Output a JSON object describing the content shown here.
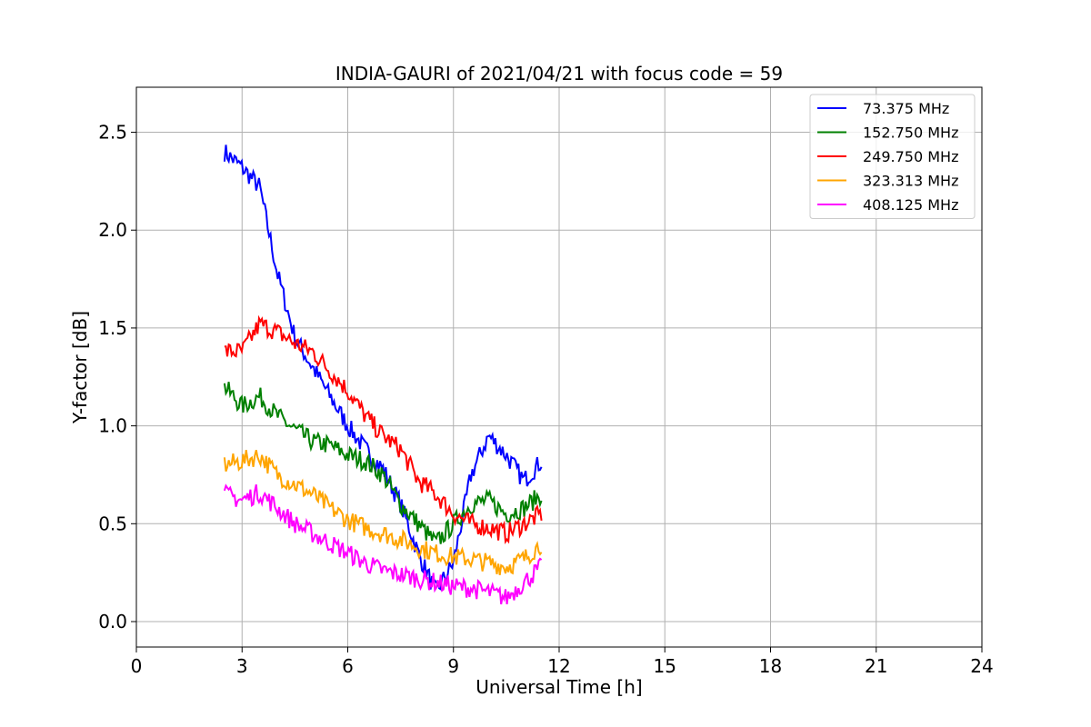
{
  "chart_data": {
    "type": "line",
    "title": "INDIA-GAURI of 2021/04/21 with focus code = 59",
    "xlabel": "Universal Time [h]",
    "ylabel": "Y-factor [dB]",
    "xlim": [
      0,
      24
    ],
    "ylim": [
      -0.13,
      2.73
    ],
    "xticks": [
      0,
      3,
      6,
      9,
      12,
      15,
      18,
      21,
      24
    ],
    "xtick_labels": [
      "0",
      "3",
      "6",
      "9",
      "12",
      "15",
      "18",
      "21",
      "24"
    ],
    "yticks": [
      0.0,
      0.5,
      1.0,
      1.5,
      2.0,
      2.5
    ],
    "ytick_labels": [
      "0.0",
      "0.5",
      "1.0",
      "1.5",
      "2.0",
      "2.5"
    ],
    "grid": true,
    "legend_position": "top-right",
    "x": [
      2.5,
      3.0,
      3.5,
      4.0,
      4.5,
      5.0,
      5.5,
      6.0,
      6.5,
      7.0,
      7.5,
      8.0,
      8.5,
      9.0,
      9.5,
      10.0,
      10.5,
      11.0,
      11.5
    ],
    "series": [
      {
        "name": " 73.375 MHz",
        "color": "#0000ff",
        "values": [
          2.4,
          2.32,
          2.22,
          1.78,
          1.45,
          1.3,
          1.15,
          1.0,
          0.88,
          0.78,
          0.6,
          0.35,
          0.15,
          0.3,
          0.75,
          0.95,
          0.85,
          0.72,
          0.82
        ]
      },
      {
        "name": "152.750 MHz",
        "color": "#008000",
        "values": [
          1.2,
          1.1,
          1.15,
          1.05,
          0.98,
          0.92,
          0.9,
          0.85,
          0.82,
          0.75,
          0.6,
          0.5,
          0.4,
          0.5,
          0.6,
          0.62,
          0.55,
          0.58,
          0.65
        ]
      },
      {
        "name": "249.750 MHz",
        "color": "#ff0000",
        "values": [
          1.38,
          1.38,
          1.52,
          1.48,
          1.42,
          1.38,
          1.28,
          1.18,
          1.05,
          0.95,
          0.88,
          0.72,
          0.65,
          0.55,
          0.5,
          0.48,
          0.45,
          0.5,
          0.55
        ]
      },
      {
        "name": "323.313 MHz",
        "color": "#ffa500",
        "values": [
          0.8,
          0.82,
          0.85,
          0.75,
          0.7,
          0.65,
          0.58,
          0.52,
          0.48,
          0.45,
          0.42,
          0.38,
          0.35,
          0.33,
          0.32,
          0.3,
          0.28,
          0.32,
          0.4
        ]
      },
      {
        "name": "408.125 MHz",
        "color": "#ff00ff",
        "values": [
          0.65,
          0.62,
          0.66,
          0.58,
          0.5,
          0.45,
          0.4,
          0.35,
          0.3,
          0.26,
          0.24,
          0.22,
          0.2,
          0.18,
          0.17,
          0.15,
          0.12,
          0.2,
          0.28
        ]
      }
    ]
  }
}
